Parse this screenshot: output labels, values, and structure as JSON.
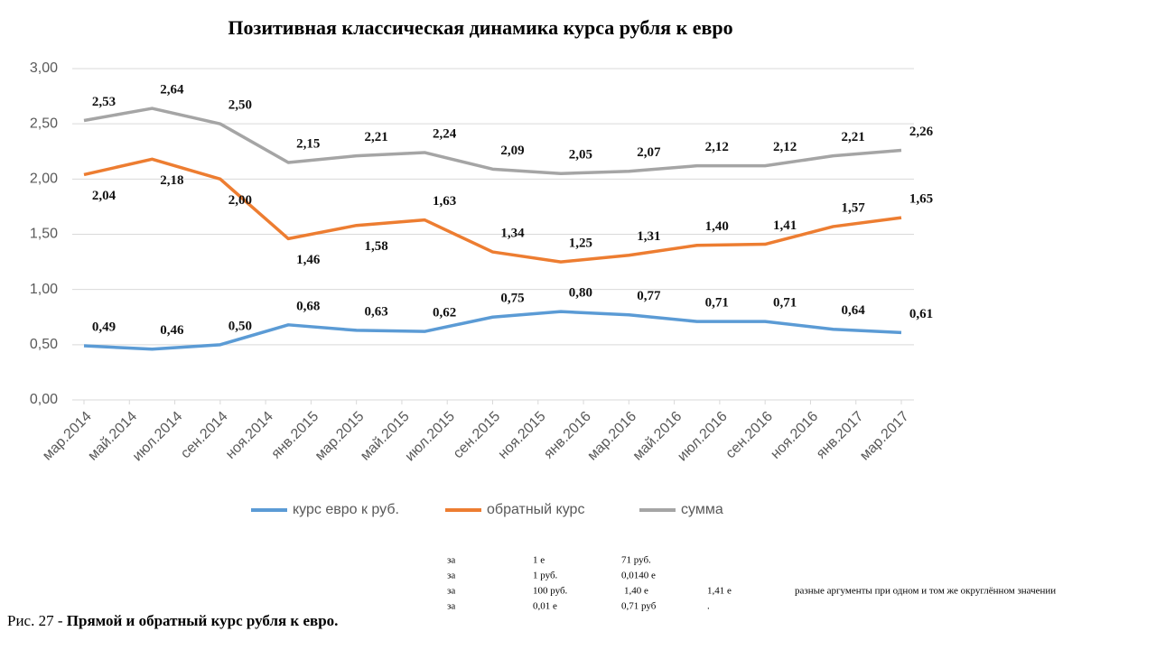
{
  "chart_data": {
    "type": "line",
    "title": "Позитивная  классическая динамика курса рубля к евро",
    "x": [
      0,
      1.5,
      3,
      4.5,
      6,
      7.5,
      9,
      10.5,
      12,
      13.5,
      15,
      16.5,
      18
    ],
    "xlim": [
      0,
      18
    ],
    "xticks": [
      {
        "value": 0,
        "label": "мар.2014"
      },
      {
        "value": 1,
        "label": "май.2014"
      },
      {
        "value": 2,
        "label": "июл.2014"
      },
      {
        "value": 3,
        "label": "сен.2014"
      },
      {
        "value": 4,
        "label": "ноя.2014"
      },
      {
        "value": 5,
        "label": "янв.2015"
      },
      {
        "value": 6,
        "label": "мар.2015"
      },
      {
        "value": 7,
        "label": "май.2015"
      },
      {
        "value": 8,
        "label": "июл.2015"
      },
      {
        "value": 9,
        "label": "сен.2015"
      },
      {
        "value": 10,
        "label": "ноя.2015"
      },
      {
        "value": 11,
        "label": "янв.2016"
      },
      {
        "value": 12,
        "label": "мар.2016"
      },
      {
        "value": 13,
        "label": "май.2016"
      },
      {
        "value": 14,
        "label": "июл.2016"
      },
      {
        "value": 15,
        "label": "сен.2016"
      },
      {
        "value": 16,
        "label": "ноя.2016"
      },
      {
        "value": 17,
        "label": "янв.2017"
      },
      {
        "value": 18,
        "label": "мар.2017"
      }
    ],
    "ylim": [
      0,
      3
    ],
    "yticks": [
      {
        "value": 0,
        "label": "0,00"
      },
      {
        "value": 0.5,
        "label": "0,50"
      },
      {
        "value": 1,
        "label": "1,00"
      },
      {
        "value": 1.5,
        "label": "1,50"
      },
      {
        "value": 2,
        "label": "2,00"
      },
      {
        "value": 2.5,
        "label": "2,50"
      },
      {
        "value": 3,
        "label": "3,00"
      }
    ],
    "grid": true,
    "legend": "bottom",
    "series": [
      {
        "name": "курс евро к руб.",
        "color": "#5b9bd5",
        "values": [
          0.49,
          0.46,
          0.5,
          0.68,
          0.63,
          0.62,
          0.75,
          0.8,
          0.77,
          0.71,
          0.71,
          0.64,
          0.61
        ],
        "value_labels": [
          "0,49",
          "0,46",
          "0,50",
          "0,68",
          "0,63",
          "0,62",
          "0,75",
          "0,80",
          "0,77",
          "0,71",
          "0,71",
          "0,64",
          "0,61"
        ]
      },
      {
        "name": "обратный курс",
        "color": "#ed7d31",
        "values": [
          2.04,
          2.18,
          2.0,
          1.46,
          1.58,
          1.63,
          1.34,
          1.25,
          1.31,
          1.4,
          1.41,
          1.57,
          1.65
        ],
        "value_labels": [
          "2,04",
          "2,18",
          "2,00",
          "1,46",
          "1,58",
          "1,63",
          "1,34",
          "1,25",
          "1,31",
          "1,40",
          "1,41",
          "1,57",
          "1,65"
        ]
      },
      {
        "name": "сумма",
        "color": "#a5a5a5",
        "values": [
          2.53,
          2.64,
          2.5,
          2.15,
          2.21,
          2.24,
          2.09,
          2.05,
          2.07,
          2.12,
          2.12,
          2.21,
          2.26
        ],
        "value_labels": [
          "2,53",
          "2,64",
          "2,50",
          "2,15",
          "2,21",
          "2,24",
          "2,09",
          "2,05",
          "2,07",
          "2,12",
          "2,12",
          "2,21",
          "2,26"
        ]
      }
    ]
  },
  "notes": [
    [
      "за",
      "1 е",
      "71 руб."
    ],
    [
      "за",
      "1 руб.",
      "0,0140  е"
    ],
    [
      "за",
      "100 руб.",
      "1,40  е",
      "1,41  е",
      "разные аргументы при одном и том же округлённом значении"
    ],
    [
      "за",
      "0,01  е",
      "0,71  руб",
      "."
    ]
  ],
  "caption": {
    "prefix": "Рис. 27 -",
    "text": "Прямой и обратный курс рубля к евро."
  }
}
